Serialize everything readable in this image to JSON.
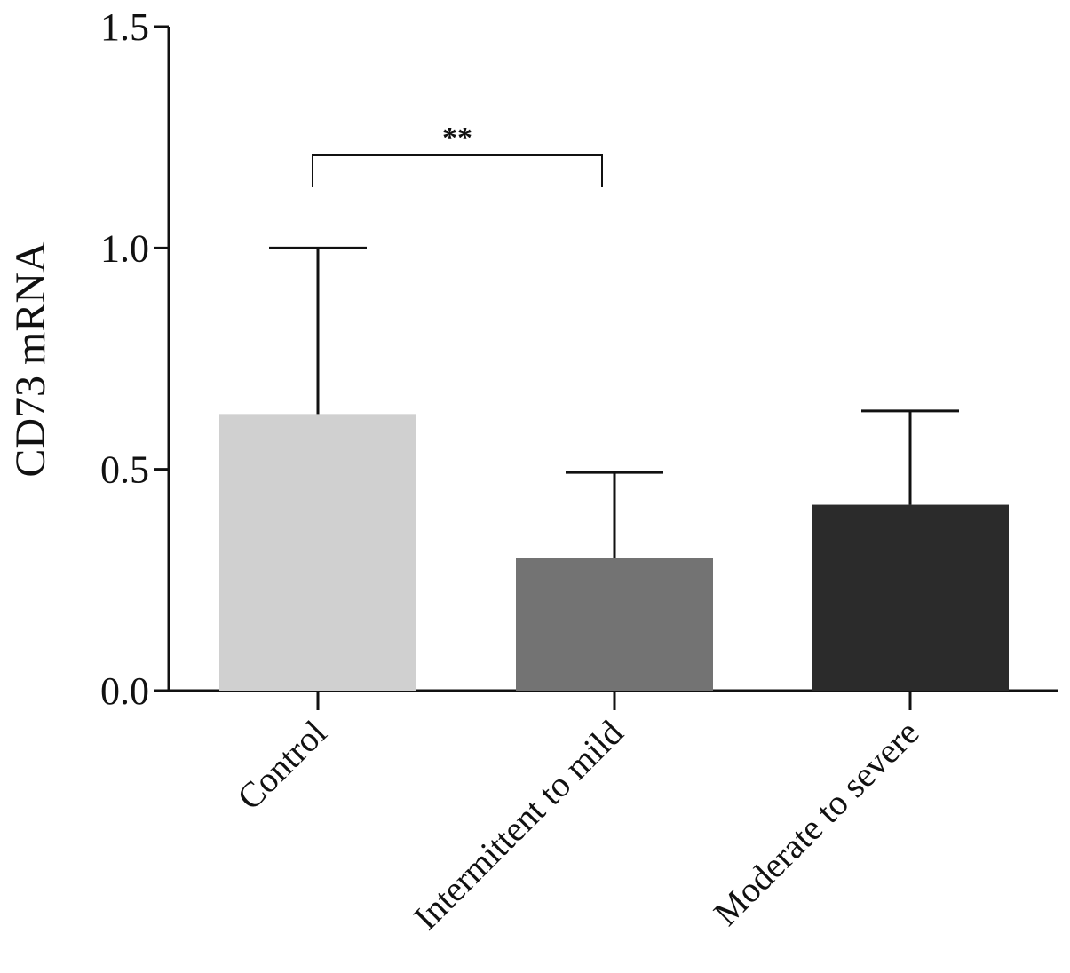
{
  "chart_data": {
    "type": "bar",
    "ylabel": "CD73 mRNA",
    "xlabel": "",
    "ylim": [
      0,
      1.5
    ],
    "yticks": [
      "0.0",
      "0.5",
      "1.0",
      "1.5"
    ],
    "categories": [
      "Control",
      "Intermittent to mild",
      "Moderate to severe"
    ],
    "values": [
      0.625,
      0.3,
      0.42
    ],
    "error_upper": [
      1.0,
      0.493,
      0.632
    ],
    "bar_colors": [
      "#d0d0d0",
      "#737373",
      "#2b2b2b"
    ],
    "significance": [
      {
        "from": 0,
        "to": 1,
        "label": "**"
      }
    ],
    "grid": false,
    "legend": "none"
  }
}
